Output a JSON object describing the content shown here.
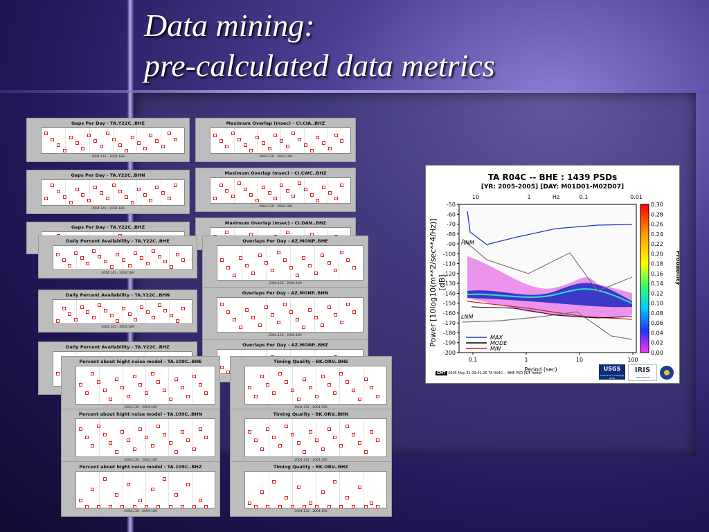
{
  "slide": {
    "title_line1": "Data mining:",
    "title_line2": "pre-calculated data metrics"
  },
  "thumbnails": [
    {
      "title": "Gaps Per Day - TA.Y22C..BHE",
      "xlabel": "2004.141 - 2004.189"
    },
    {
      "title": "Gaps Per Day - TA.Y22C..BHN",
      "xlabel": "2004.141 - 2004.189"
    },
    {
      "title": "Gaps Per Day - TA.Y22C..BHZ",
      "xlabel": ""
    },
    {
      "title": "Maximum Overlap (msec) - CI.CIA..BHZ",
      "xlabel": "2004.126 - 2004.189"
    },
    {
      "title": "Maximum Overlap (msec) - CI.CWC..BHZ",
      "xlabel": "2004.126 - 2004.189"
    },
    {
      "title": "Maximum Overlap (msec) - CI.DAN..BHZ",
      "xlabel": ""
    },
    {
      "title": "Daily Percent Availability - TA.Y22C..BHE",
      "xlabel": "2004.141 - 2004.189"
    },
    {
      "title": "Daily Percent Availability - TA.Y22C..BHN",
      "xlabel": "2004.141 - 2004.189"
    },
    {
      "title": "Daily Percent Availability - TA.Y22C..BHZ",
      "xlabel": ""
    },
    {
      "title": "Overlaps Per Day - AZ.MONP..BHE",
      "xlabel": "2004.126 - 2004.189"
    },
    {
      "title": "Overlaps Per Day - AZ.MONP..BHN",
      "xlabel": "2004.126 - 2004.189"
    },
    {
      "title": "Overlaps Per Day - AZ.MONP..BHZ",
      "xlabel": ""
    },
    {
      "title": "Percent about hight noise model - TA.109C..BHE",
      "xlabel": "2004.130 - 2004.189"
    },
    {
      "title": "Percent about hight noise model - TA.109C..BHN",
      "xlabel": "2004.130 - 2004.189"
    },
    {
      "title": "Percent about hight noise model - TA.109C..BHZ",
      "xlabel": "2004.130 - 2004.189"
    },
    {
      "title": "Timing Quality - BK.ORV..BHE",
      "xlabel": "2004.132 - 2004.190"
    },
    {
      "title": "Timing Quality - BK.ORV..BHN",
      "xlabel": "2004.132 - 2004.190"
    },
    {
      "title": "Timing Quality - BK.ORV..BHZ",
      "xlabel": "2004.132 - 2004.190"
    }
  ],
  "psd_figure": {
    "title": "TA R04C -- BHE : 1439 PSDs",
    "subtitle": "[YR: 2005-2005]  [DAY: M01D01-M02D07]",
    "ylabel": "Power [10log10(m**2/sec**4/Hz)] [dB]",
    "xlabel": "Period (sec)",
    "top_axis_label": "Hz",
    "top_ticks": [
      "10",
      "1",
      "0.1",
      "0.01"
    ],
    "bottom_ticks": [
      "0.1",
      "1",
      "10",
      "100"
    ],
    "y_ticks": [
      "-50",
      "-60",
      "-70",
      "-80",
      "-90",
      "-100",
      "-110",
      "-120",
      "-130",
      "-140",
      "-150",
      "-160",
      "-170",
      "-180",
      "-190",
      "-200"
    ],
    "colorbar_label": "Probability",
    "colorbar_ticks": [
      "0.30",
      "0.28",
      "0.26",
      "0.24",
      "0.22",
      "0.20",
      "0.18",
      "0.16",
      "0.14",
      "0.12",
      "0.10",
      "0.08",
      "0.06",
      "0.04",
      "0.02",
      "0.00"
    ],
    "annotations": {
      "hnm": "HNM",
      "lnm": "LNM"
    },
    "legend": [
      {
        "label": "MAX",
        "color": "#2233cc"
      },
      {
        "label": "MODE",
        "color": "#000000"
      },
      {
        "label": "MIN",
        "color": "#cc2222"
      }
    ],
    "footer_badge": "GMT",
    "footer_text": "2005 May 31 09:41:25   TA R04C -- BHE PSD PDF footer",
    "logo_usgs": "USGS",
    "logo_usgs_tag": "science for a changing world",
    "logo_iris": "IRIS",
    "logo_iris_tag": "CONSORTIUM"
  }
}
